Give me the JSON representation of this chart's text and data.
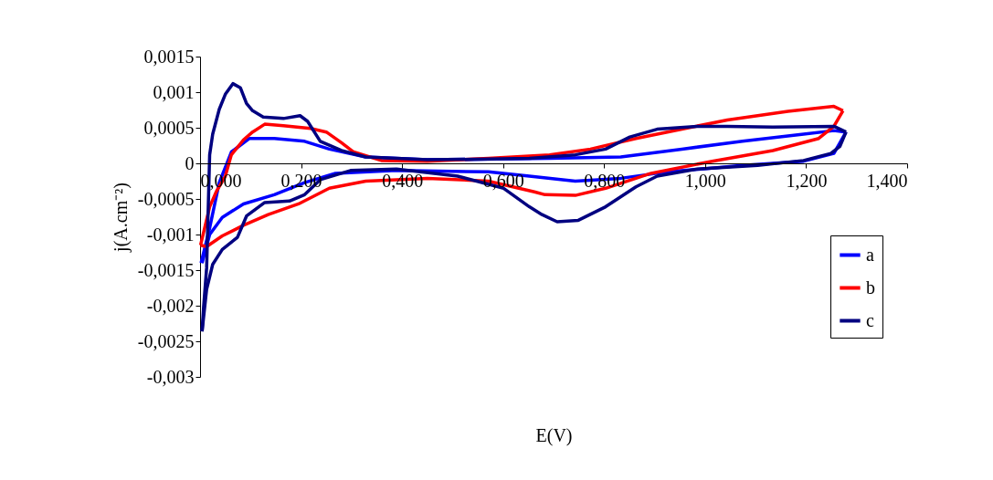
{
  "chart_data": {
    "type": "line",
    "xlabel": "E(V)",
    "ylabel": "j(A.cm⁻²)",
    "xlim": [
      0,
      1.4
    ],
    "ylim": [
      -0.003,
      0.0015
    ],
    "xticks": [
      {
        "value": 0,
        "label": "0,000"
      },
      {
        "value": 0.2,
        "label": "0,200"
      },
      {
        "value": 0.4,
        "label": "0,400"
      },
      {
        "value": 0.6,
        "label": "0,600"
      },
      {
        "value": 0.8,
        "label": "0,800"
      },
      {
        "value": 1.0,
        "label": "1,000"
      },
      {
        "value": 1.2,
        "label": "1,200"
      },
      {
        "value": 1.4,
        "label": "1,400"
      }
    ],
    "yticks": [
      {
        "value": 0.0015,
        "label": "0,0015"
      },
      {
        "value": 0.001,
        "label": "0,001"
      },
      {
        "value": 0.0005,
        "label": "0,0005"
      },
      0,
      {
        "value": -0.0005,
        "label": "-0,0005"
      },
      {
        "value": -0.001,
        "label": "-0,001"
      },
      {
        "value": -0.0015,
        "label": "-0,0015"
      },
      {
        "value": -0.002,
        "label": "-0,002"
      },
      {
        "value": -0.0025,
        "label": "-0,0025"
      },
      {
        "value": -0.003,
        "label": "-0,003"
      }
    ],
    "grid": false,
    "legend": "right",
    "marker": "none",
    "line_style": "solid",
    "series": [
      {
        "name": "a",
        "color": "#0000ff",
        "x": [
          0.002,
          0.019,
          0.038,
          0.062,
          0.098,
          0.147,
          0.207,
          0.256,
          0.328,
          0.45,
          0.692,
          0.833,
          0.954,
          1.074,
          1.195,
          1.255,
          1.279
        ],
        "values": [
          -0.0014,
          -0.00091,
          -0.00027,
          0.00016,
          0.00035,
          0.00035,
          0.00031,
          0.0002,
          9e-05,
          5e-05,
          7e-05,
          9e-05,
          0.0002,
          0.00031,
          0.00041,
          0.00046,
          0.00044
        ]
      },
      {
        "color": "#0000ff",
        "x": [
          1.279,
          1.255,
          1.195,
          1.074,
          0.924,
          0.833,
          0.743,
          0.652,
          0.571,
          0.389,
          0.268,
          0.207,
          0.147,
          0.086,
          0.044,
          0.019,
          0.004
        ],
        "values": [
          0.00044,
          0.00014,
          3e-05,
          -3e-05,
          -0.00012,
          -0.00021,
          -0.00025,
          -0.00018,
          -0.00012,
          -0.0001,
          -0.00014,
          -0.00027,
          -0.00044,
          -0.00057,
          -0.00076,
          -0.001,
          -0.0014
        ]
      },
      {
        "name": "b",
        "color": "#ff0000",
        "x": [
          0.001,
          0.019,
          0.032,
          0.05,
          0.062,
          0.086,
          0.104,
          0.128,
          0.165,
          0.219,
          0.25,
          0.28,
          0.304,
          0.359,
          0.45,
          0.571,
          0.692,
          0.773,
          0.863,
          0.954,
          1.044,
          1.164,
          1.255,
          1.273
        ],
        "values": [
          -0.00115,
          -0.00061,
          -0.0004,
          -0.00018,
          0.00012,
          0.00033,
          0.00044,
          0.00055,
          0.00053,
          0.00049,
          0.00044,
          0.00029,
          0.00016,
          4e-05,
          3e-05,
          7e-05,
          0.00012,
          0.0002,
          0.00035,
          0.00048,
          0.00061,
          0.00073,
          0.0008,
          0.00074
        ]
      },
      {
        "color": "#ff0000",
        "x": [
          1.273,
          1.255,
          1.225,
          1.134,
          1.014,
          0.893,
          0.803,
          0.743,
          0.683,
          0.662,
          0.571,
          0.45,
          0.328,
          0.256,
          0.195,
          0.135,
          0.086,
          0.044,
          0.013,
          0.001
        ],
        "values": [
          0.00074,
          0.00052,
          0.00035,
          0.00018,
          3e-05,
          -0.00014,
          -0.00035,
          -0.00045,
          -0.00044,
          -0.0004,
          -0.00025,
          -0.00021,
          -0.00025,
          -0.00035,
          -0.00057,
          -0.00072,
          -0.00087,
          -0.00102,
          -0.00117,
          -0.00115
        ]
      },
      {
        "name": "c",
        "color": "#000080",
        "x": [
          0.004,
          0.007,
          0.013,
          0.019,
          0.025,
          0.038,
          0.05,
          0.065,
          0.08,
          0.092,
          0.104,
          0.125,
          0.165,
          0.198,
          0.213,
          0.238,
          0.28,
          0.328,
          0.45,
          0.571,
          0.652,
          0.743,
          0.803,
          0.851,
          0.905,
          0.984,
          1.044,
          1.134,
          1.255,
          1.279
        ],
        "values": [
          -0.00236,
          -0.00202,
          -0.00147,
          0.00012,
          0.00041,
          0.00076,
          0.00097,
          0.00112,
          0.00106,
          0.00084,
          0.00074,
          0.00065,
          0.00063,
          0.00067,
          0.00059,
          0.00031,
          0.00018,
          9e-05,
          5e-05,
          6e-05,
          7e-05,
          0.00012,
          0.0002,
          0.00037,
          0.00048,
          0.00052,
          0.00052,
          0.00051,
          0.00052,
          0.00044
        ]
      },
      {
        "color": "#000080",
        "x": [
          1.279,
          1.267,
          1.249,
          1.195,
          1.104,
          0.984,
          0.905,
          0.863,
          0.803,
          0.749,
          0.707,
          0.677,
          0.652,
          0.601,
          0.51,
          0.389,
          0.298,
          0.238,
          0.207,
          0.177,
          0.128,
          0.092,
          0.074,
          0.044,
          0.025,
          0.013,
          0.004
        ],
        "values": [
          0.00044,
          0.00024,
          0.00014,
          4e-05,
          -3e-05,
          -8e-05,
          -0.00018,
          -0.00033,
          -0.00061,
          -0.0008,
          -0.00082,
          -0.00072,
          -0.00061,
          -0.00035,
          -0.00018,
          -8e-05,
          -0.0001,
          -0.00023,
          -0.00044,
          -0.00053,
          -0.00055,
          -0.00074,
          -0.00104,
          -0.00121,
          -0.00142,
          -0.00177,
          -0.00236
        ]
      }
    ]
  }
}
